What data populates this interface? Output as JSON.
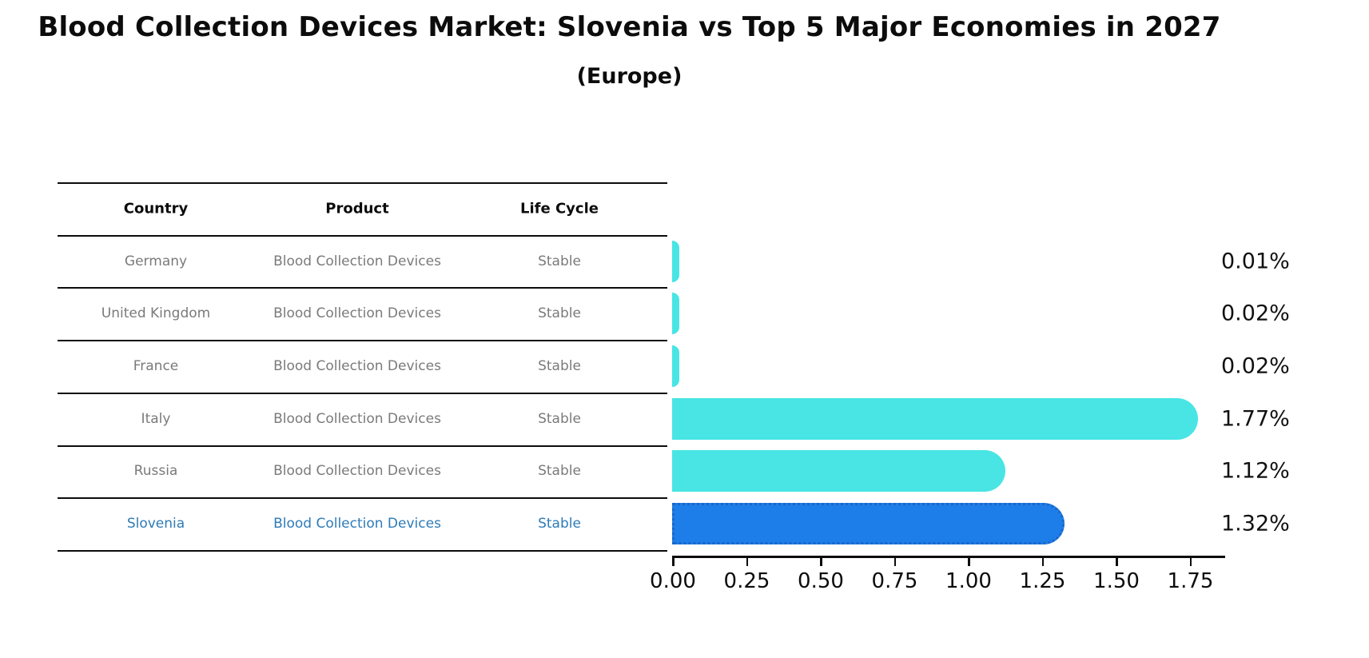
{
  "header": {
    "title": "Blood Collection Devices Market: Slovenia vs Top 5 Major Economies in 2027",
    "subtitle": "(Europe)"
  },
  "table": {
    "columns": [
      "Country",
      "Product",
      "Life Cycle"
    ],
    "rows": [
      {
        "country": "Germany",
        "product": "Blood Collection Devices",
        "life_cycle": "Stable",
        "highlight": false
      },
      {
        "country": "United Kingdom",
        "product": "Blood Collection Devices",
        "life_cycle": "Stable",
        "highlight": false
      },
      {
        "country": "France",
        "product": "Blood Collection Devices",
        "life_cycle": "Stable",
        "highlight": false
      },
      {
        "country": "Italy",
        "product": "Blood Collection Devices",
        "life_cycle": "Stable",
        "highlight": false
      },
      {
        "country": "Russia",
        "product": "Blood Collection Devices",
        "life_cycle": "Stable",
        "highlight": false
      },
      {
        "country": "Slovenia",
        "product": "Blood Collection Devices",
        "life_cycle": "Stable",
        "highlight": true
      }
    ]
  },
  "chart_data": {
    "type": "bar",
    "orientation": "horizontal",
    "title": "Blood Collection Devices Market: Slovenia vs Top 5 Major Economies in 2027 (Europe)",
    "categories": [
      "Germany",
      "United Kingdom",
      "France",
      "Italy",
      "Russia",
      "Slovenia"
    ],
    "values": [
      0.01,
      0.02,
      0.02,
      1.77,
      1.12,
      1.32
    ],
    "value_labels": [
      "0.01%",
      "0.02%",
      "0.02%",
      "1.77%",
      "1.12%",
      "1.32%"
    ],
    "highlight_category": "Slovenia",
    "xlim": [
      0,
      1.86
    ],
    "x_ticks": [
      0.0,
      0.25,
      0.5,
      0.75,
      1.0,
      1.25,
      1.5,
      1.75
    ],
    "x_tick_labels": [
      "0.00",
      "0.25",
      "0.50",
      "0.75",
      "1.00",
      "1.25",
      "1.50",
      "1.75"
    ],
    "grid": false,
    "legend": false,
    "colors": {
      "bar_default": "#48e5e4",
      "bar_highlight": "#1e7ee9",
      "bar_highlight_border": "#1b66c9",
      "highlight_text": "#2e7bb8",
      "cell_text": "#7a7a7a",
      "axis_text": "#0c0c0c"
    }
  }
}
